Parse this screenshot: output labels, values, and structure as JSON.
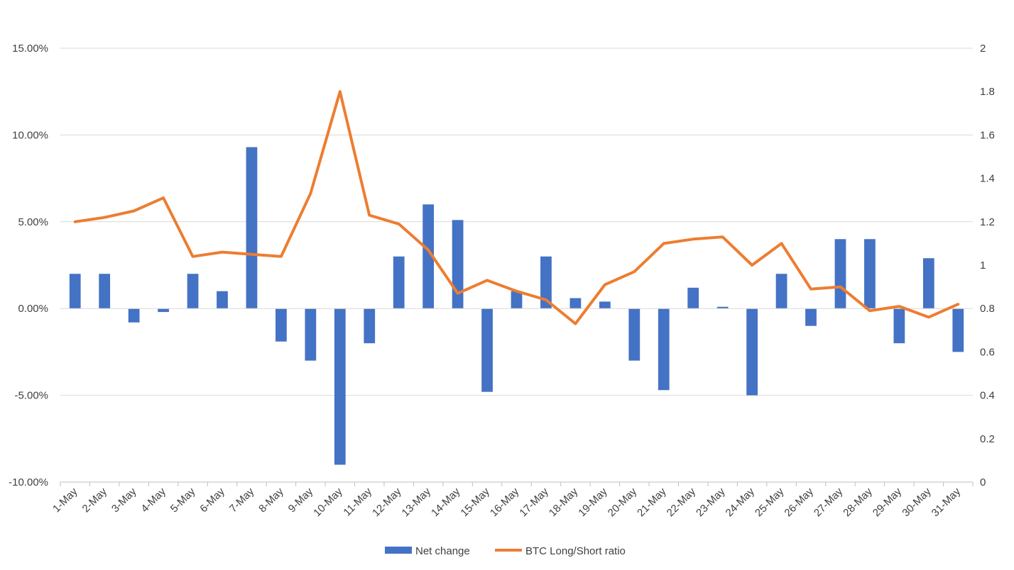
{
  "chart_data": {
    "type": "bar",
    "title": "",
    "categories": [
      "1-May",
      "2-May",
      "3-May",
      "4-May",
      "5-May",
      "6-May",
      "7-May",
      "8-May",
      "9-May",
      "10-May",
      "11-May",
      "12-May",
      "13-May",
      "14-May",
      "15-May",
      "16-May",
      "17-May",
      "18-May",
      "19-May",
      "20-May",
      "21-May",
      "22-May",
      "23-May",
      "24-May",
      "25-May",
      "26-May",
      "27-May",
      "28-May",
      "29-May",
      "30-May",
      "31-May"
    ],
    "series": [
      {
        "name": "Net change",
        "type": "bar",
        "axis": "left",
        "color": "#4472C4",
        "values": [
          2.0,
          2.0,
          -0.8,
          -0.2,
          2.0,
          1.0,
          9.3,
          -1.9,
          -3.0,
          -9.0,
          -2.0,
          3.0,
          6.0,
          5.1,
          -4.8,
          1.0,
          3.0,
          0.6,
          0.4,
          -3.0,
          -4.7,
          1.2,
          0.1,
          -5.0,
          2.0,
          -1.0,
          4.0,
          4.0,
          -2.0,
          2.9,
          -2.5
        ]
      },
      {
        "name": "BTC Long/Short ratio",
        "type": "line",
        "axis": "right",
        "color": "#ED7D31",
        "values": [
          1.2,
          1.22,
          1.25,
          1.31,
          1.04,
          1.06,
          1.05,
          1.04,
          1.33,
          1.8,
          1.23,
          1.19,
          1.07,
          0.87,
          0.93,
          0.88,
          0.84,
          0.73,
          0.91,
          0.97,
          1.1,
          1.12,
          1.13,
          1.0,
          1.1,
          0.89,
          0.9,
          0.79,
          0.81,
          0.76,
          0.82
        ]
      }
    ],
    "y_left": {
      "min": -10,
      "max": 15,
      "step": 5,
      "tick_labels": [
        "-10.00%",
        "-5.00%",
        "0.00%",
        "5.00%",
        "10.00%",
        "15.00%"
      ]
    },
    "y_right": {
      "min": 0,
      "max": 2,
      "step": 0.2,
      "tick_labels": [
        "0",
        "0.2",
        "0.4",
        "0.6",
        "0.8",
        "1",
        "1.2",
        "1.4",
        "1.6",
        "1.8",
        "2"
      ]
    },
    "grid": true,
    "legend_position": "bottom",
    "legend": [
      {
        "label": "Net change",
        "kind": "bar",
        "color": "#4472C4"
      },
      {
        "label": "BTC Long/Short ratio",
        "kind": "line",
        "color": "#ED7D31"
      }
    ]
  }
}
